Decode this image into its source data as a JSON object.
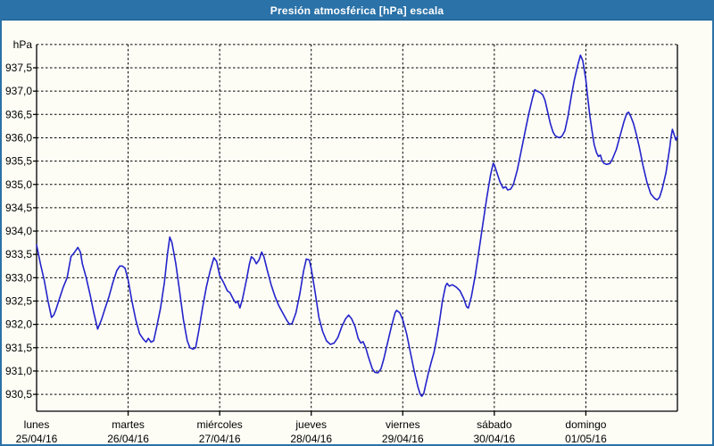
{
  "window": {
    "title": "Presión atmosférica [hPa] escala"
  },
  "colors": {
    "frame_blue": "#2a72a8",
    "titlebar_blue": "#2a72a8",
    "line_blue": "#2323cb",
    "grid_color": "#000000",
    "background": "#fdfdf6",
    "title_text": "#ffffff"
  },
  "chart_data": {
    "type": "line",
    "title": "Presión atmosférica [hPa] escala",
    "y_unit_label": "hPa",
    "grid": "dashed",
    "legend": "none",
    "y_axis": {
      "min": 930.1,
      "max": 938.0,
      "tick_step": 0.5,
      "top_gridline_value": 938.0,
      "ticks": [
        {
          "label": "937,5",
          "value": 937.5
        },
        {
          "label": "937,0",
          "value": 937.0
        },
        {
          "label": "936,5",
          "value": 936.5
        },
        {
          "label": "936,0",
          "value": 936.0
        },
        {
          "label": "935,5",
          "value": 935.5
        },
        {
          "label": "935,0",
          "value": 935.0
        },
        {
          "label": "934,5",
          "value": 934.5
        },
        {
          "label": "934,0",
          "value": 934.0
        },
        {
          "label": "933,5",
          "value": 933.5
        },
        {
          "label": "933,0",
          "value": 933.0
        },
        {
          "label": "932,5",
          "value": 932.5
        },
        {
          "label": "932,0",
          "value": 932.0
        },
        {
          "label": "931,5",
          "value": 931.5
        },
        {
          "label": "931,0",
          "value": 931.0
        },
        {
          "label": "930,5",
          "value": 930.5
        }
      ]
    },
    "x_axis": {
      "hours_total": 168,
      "hours_per_day": 24,
      "categories": [
        {
          "name": "lunes",
          "date": "25/04/16"
        },
        {
          "name": "martes",
          "date": "26/04/16"
        },
        {
          "name": "miércoles",
          "date": "27/04/16"
        },
        {
          "name": "jueves",
          "date": "28/04/16"
        },
        {
          "name": "viernes",
          "date": "29/04/16"
        },
        {
          "name": "sábado",
          "date": "30/04/16"
        },
        {
          "name": "domingo",
          "date": "01/05/16"
        }
      ]
    },
    "series": [
      {
        "name": "Presión atmosférica [hPa]",
        "color": "#2323cb",
        "points_hours_values": [
          [
            0,
            933.7
          ],
          [
            1,
            933.3
          ],
          [
            2,
            932.95
          ],
          [
            3,
            932.5
          ],
          [
            3.9,
            932.15
          ],
          [
            4.5,
            932.2
          ],
          [
            5,
            932.3
          ],
          [
            6,
            932.55
          ],
          [
            7,
            932.8
          ],
          [
            8,
            933.0
          ],
          [
            9,
            933.45
          ],
          [
            10,
            933.55
          ],
          [
            10.8,
            933.65
          ],
          [
            11.5,
            933.55
          ],
          [
            12,
            933.3
          ],
          [
            13,
            933.0
          ],
          [
            14,
            932.65
          ],
          [
            15,
            932.25
          ],
          [
            16,
            931.9
          ],
          [
            17,
            932.1
          ],
          [
            18,
            932.35
          ],
          [
            19,
            932.6
          ],
          [
            20,
            932.9
          ],
          [
            21,
            933.15
          ],
          [
            21.8,
            933.25
          ],
          [
            22.5,
            933.25
          ],
          [
            23.2,
            933.2
          ],
          [
            24,
            932.95
          ],
          [
            25,
            932.5
          ],
          [
            26,
            932.1
          ],
          [
            27,
            931.8
          ],
          [
            28,
            931.68
          ],
          [
            28.7,
            931.62
          ],
          [
            29.3,
            931.7
          ],
          [
            30,
            931.62
          ],
          [
            30.7,
            931.65
          ],
          [
            31.5,
            931.95
          ],
          [
            32.5,
            932.35
          ],
          [
            33.5,
            932.9
          ],
          [
            34.3,
            933.5
          ],
          [
            34.9,
            933.87
          ],
          [
            35.5,
            933.75
          ],
          [
            36.5,
            933.3
          ],
          [
            37.5,
            932.7
          ],
          [
            38.5,
            932.1
          ],
          [
            39.5,
            931.65
          ],
          [
            40.2,
            931.5
          ],
          [
            41,
            931.47
          ],
          [
            41.7,
            931.5
          ],
          [
            42.5,
            931.85
          ],
          [
            43.5,
            932.35
          ],
          [
            44.5,
            932.8
          ],
          [
            45.5,
            933.15
          ],
          [
            46.5,
            933.43
          ],
          [
            47.2,
            933.35
          ],
          [
            48,
            933.05
          ],
          [
            49,
            932.9
          ],
          [
            50,
            932.72
          ],
          [
            50.7,
            932.68
          ],
          [
            51.5,
            932.55
          ],
          [
            52.2,
            932.46
          ],
          [
            52.7,
            932.5
          ],
          [
            53.3,
            932.35
          ],
          [
            54,
            932.55
          ],
          [
            55,
            932.95
          ],
          [
            55.8,
            933.3
          ],
          [
            56.3,
            933.45
          ],
          [
            57,
            933.4
          ],
          [
            57.6,
            933.3
          ],
          [
            58.3,
            933.38
          ],
          [
            59,
            933.55
          ],
          [
            59.6,
            933.45
          ],
          [
            60.5,
            933.15
          ],
          [
            61.5,
            932.85
          ],
          [
            62.5,
            932.6
          ],
          [
            63.5,
            932.4
          ],
          [
            64.5,
            932.25
          ],
          [
            65.5,
            932.1
          ],
          [
            66.3,
            932.0
          ],
          [
            67,
            932.02
          ],
          [
            68,
            932.25
          ],
          [
            69,
            932.65
          ],
          [
            70,
            933.15
          ],
          [
            70.7,
            933.4
          ],
          [
            71.5,
            933.38
          ],
          [
            72,
            933.2
          ],
          [
            73,
            932.7
          ],
          [
            74,
            932.15
          ],
          [
            75,
            931.85
          ],
          [
            76,
            931.65
          ],
          [
            77,
            931.57
          ],
          [
            78,
            931.6
          ],
          [
            79,
            931.72
          ],
          [
            80,
            931.95
          ],
          [
            81,
            932.12
          ],
          [
            81.8,
            932.2
          ],
          [
            82.6,
            932.12
          ],
          [
            83.5,
            931.95
          ],
          [
            84.3,
            931.7
          ],
          [
            85,
            931.6
          ],
          [
            85.6,
            931.63
          ],
          [
            86.3,
            931.5
          ],
          [
            87,
            931.3
          ],
          [
            88,
            931.05
          ],
          [
            88.7,
            930.97
          ],
          [
            89.5,
            930.96
          ],
          [
            90.3,
            931.05
          ],
          [
            91,
            931.25
          ],
          [
            92,
            931.6
          ],
          [
            93,
            931.95
          ],
          [
            94,
            932.25
          ],
          [
            94.4,
            932.3
          ],
          [
            95.2,
            932.25
          ],
          [
            96,
            932.1
          ],
          [
            97,
            931.8
          ],
          [
            98,
            931.4
          ],
          [
            99,
            931.0
          ],
          [
            100,
            930.65
          ],
          [
            100.6,
            930.5
          ],
          [
            101,
            930.46
          ],
          [
            101.5,
            930.52
          ],
          [
            102,
            930.7
          ],
          [
            102.7,
            930.95
          ],
          [
            103.5,
            931.2
          ],
          [
            104.2,
            931.4
          ],
          [
            105,
            931.75
          ],
          [
            105.7,
            932.1
          ],
          [
            106.4,
            932.5
          ],
          [
            107.2,
            932.82
          ],
          [
            107.6,
            932.88
          ],
          [
            108.2,
            932.82
          ],
          [
            109,
            932.85
          ],
          [
            110,
            932.8
          ],
          [
            111,
            932.72
          ],
          [
            112,
            932.55
          ],
          [
            112.7,
            932.38
          ],
          [
            113.2,
            932.35
          ],
          [
            114,
            932.6
          ],
          [
            115,
            933.05
          ],
          [
            116,
            933.6
          ],
          [
            117,
            934.15
          ],
          [
            118,
            934.7
          ],
          [
            119,
            935.2
          ],
          [
            119.7,
            935.45
          ],
          [
            120,
            935.42
          ],
          [
            120.7,
            935.25
          ],
          [
            121.5,
            935.05
          ],
          [
            122.3,
            934.92
          ],
          [
            123,
            934.95
          ],
          [
            123.5,
            934.88
          ],
          [
            124.3,
            934.9
          ],
          [
            125,
            935.0
          ],
          [
            126,
            935.3
          ],
          [
            127,
            935.7
          ],
          [
            128,
            936.1
          ],
          [
            129,
            936.5
          ],
          [
            130,
            936.85
          ],
          [
            130.6,
            937.03
          ],
          [
            131.2,
            937.0
          ],
          [
            132,
            936.97
          ],
          [
            132.7,
            936.92
          ],
          [
            133.3,
            936.8
          ],
          [
            134,
            936.55
          ],
          [
            134.7,
            936.3
          ],
          [
            135.4,
            936.12
          ],
          [
            136,
            936.04
          ],
          [
            137,
            936.0
          ],
          [
            137.7,
            936.03
          ],
          [
            138.5,
            936.15
          ],
          [
            139.3,
            936.45
          ],
          [
            140.2,
            936.9
          ],
          [
            141,
            937.25
          ],
          [
            142,
            937.6
          ],
          [
            142.6,
            937.77
          ],
          [
            143.2,
            937.65
          ],
          [
            144,
            937.25
          ],
          [
            144.5,
            936.85
          ],
          [
            145,
            936.5
          ],
          [
            145.6,
            936.15
          ],
          [
            146.2,
            935.85
          ],
          [
            146.8,
            935.68
          ],
          [
            147.3,
            935.6
          ],
          [
            147.8,
            935.63
          ],
          [
            148.3,
            935.5
          ],
          [
            148.8,
            935.45
          ],
          [
            149.5,
            935.43
          ],
          [
            150.3,
            935.45
          ],
          [
            151,
            935.55
          ],
          [
            152,
            935.75
          ],
          [
            153,
            936.05
          ],
          [
            154,
            936.35
          ],
          [
            154.7,
            936.52
          ],
          [
            155.2,
            936.55
          ],
          [
            155.8,
            936.45
          ],
          [
            156.5,
            936.3
          ],
          [
            157.3,
            936.05
          ],
          [
            158,
            935.8
          ],
          [
            159,
            935.4
          ],
          [
            160,
            935.05
          ],
          [
            161,
            934.8
          ],
          [
            162,
            934.7
          ],
          [
            162.7,
            934.67
          ],
          [
            163.3,
            934.72
          ],
          [
            164,
            934.9
          ],
          [
            165,
            935.25
          ],
          [
            166,
            935.8
          ],
          [
            166.3,
            936.0
          ],
          [
            166.7,
            936.18
          ],
          [
            167.2,
            936.05
          ],
          [
            167.6,
            935.95
          ],
          [
            167.8,
            936.0
          ],
          [
            168,
            936.02
          ]
        ]
      }
    ]
  }
}
